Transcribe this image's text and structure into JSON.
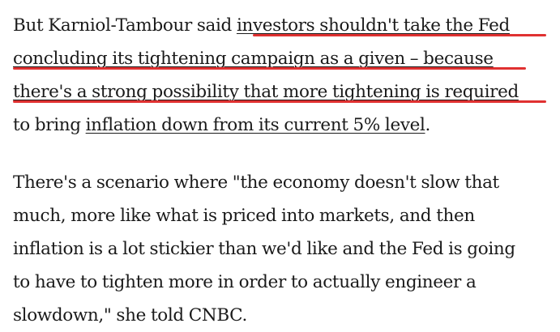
{
  "paragraphs": [
    {
      "lines": [
        {
          "before": "But Karniol-Tambour said ",
          "link": "investors shouldn't take the Fed",
          "after": ""
        },
        {
          "before": "",
          "link": "concluding its tightening campaign as a given – because",
          "after": ""
        },
        {
          "before": "",
          "link": "there's a strong possibility that more tightening is required",
          "after": ""
        },
        {
          "before": "to bring ",
          "link": "inflation down from its current 5% level",
          "after": "."
        }
      ]
    },
    {
      "lines": [
        "There's a scenario where \"the economy doesn't slow that",
        "much, more like what is priced into markets, and then",
        "inflation is a lot stickier than we'd like and the Fed is going",
        "to have to tighten more in order to actually engineer a",
        "slowdown,\" she told CNBC."
      ]
    }
  ],
  "colors": {
    "text": "#1a1a1a",
    "annotation_underline": "#e03131",
    "background": "#ffffff"
  }
}
